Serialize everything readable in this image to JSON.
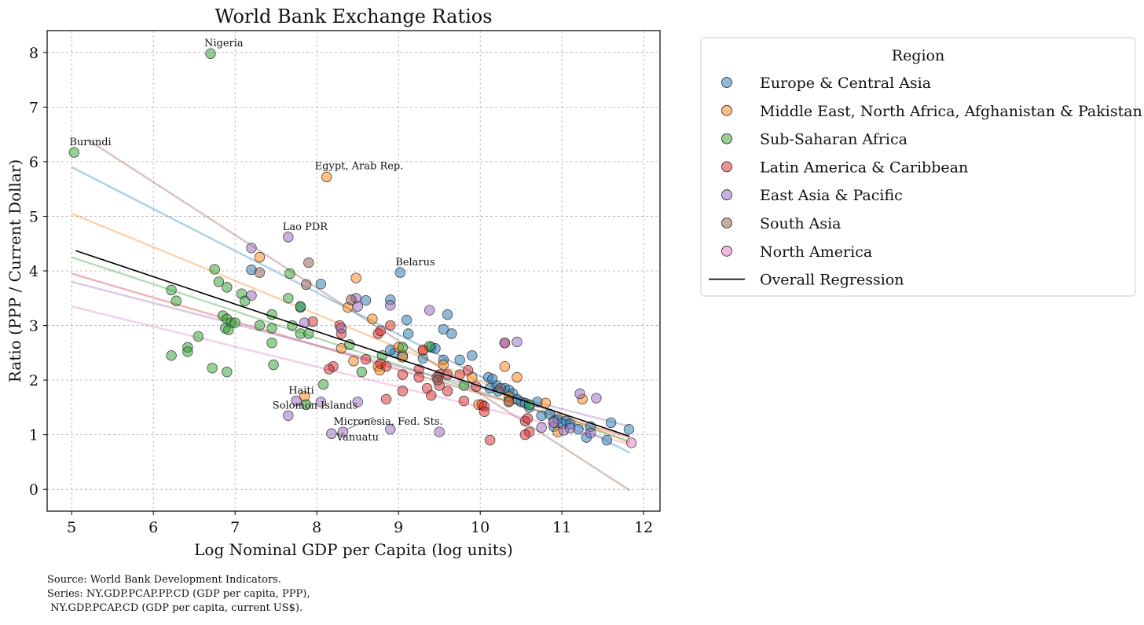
{
  "chart_data": {
    "type": "scatter",
    "title": "World Bank Exchange Ratios",
    "xlabel": "Log Nominal GDP per Capita (log units)",
    "ylabel": "Ratio (PPP / Current Dollar)",
    "xlim": [
      4.7,
      12.2
    ],
    "ylim": [
      -0.4,
      8.4
    ],
    "xticks": [
      5,
      6,
      7,
      8,
      9,
      10,
      11,
      12
    ],
    "yticks": [
      0,
      1,
      2,
      3,
      4,
      5,
      6,
      7,
      8
    ],
    "grid": true,
    "legend": {
      "title": "Region",
      "placement": "outside-right",
      "overall_label": "Overall Regression"
    },
    "series": [
      {
        "name": "Europe & Central Asia",
        "color": "#1f77b4",
        "regression": [
          [
            5.0,
            5.9
          ],
          [
            11.83,
            0.67
          ]
        ],
        "points": [
          [
            9.02,
            3.97
          ],
          [
            8.05,
            3.76
          ],
          [
            8.6,
            3.46
          ],
          [
            8.9,
            3.47
          ],
          [
            9.1,
            3.1
          ],
          [
            9.6,
            3.2
          ],
          [
            9.55,
            2.93
          ],
          [
            9.65,
            2.85
          ],
          [
            9.12,
            2.85
          ],
          [
            8.95,
            2.5
          ],
          [
            9.05,
            2.45
          ],
          [
            8.9,
            2.55
          ],
          [
            9.4,
            2.6
          ],
          [
            9.45,
            2.58
          ],
          [
            9.3,
            2.4
          ],
          [
            9.55,
            2.37
          ],
          [
            9.75,
            2.37
          ],
          [
            9.9,
            2.45
          ],
          [
            7.2,
            4.02
          ],
          [
            7.8,
            3.33
          ],
          [
            10.1,
            2.05
          ],
          [
            10.15,
            2.02
          ],
          [
            10.2,
            1.9
          ],
          [
            10.3,
            1.85
          ],
          [
            10.35,
            1.82
          ],
          [
            10.4,
            1.75
          ],
          [
            10.45,
            1.65
          ],
          [
            10.5,
            1.6
          ],
          [
            10.55,
            1.58
          ],
          [
            10.6,
            1.5
          ],
          [
            10.7,
            1.6
          ],
          [
            10.75,
            1.35
          ],
          [
            10.85,
            1.38
          ],
          [
            10.9,
            1.25
          ],
          [
            10.95,
            1.28
          ],
          [
            11.0,
            1.2
          ],
          [
            10.9,
            1.15
          ],
          [
            11.05,
            1.25
          ],
          [
            11.1,
            1.2
          ],
          [
            11.2,
            1.1
          ],
          [
            11.35,
            1.15
          ],
          [
            11.3,
            0.95
          ],
          [
            11.55,
            0.9
          ],
          [
            11.6,
            1.22
          ],
          [
            11.82,
            1.1
          ],
          [
            10.12,
            1.85
          ],
          [
            10.22,
            1.8
          ]
        ]
      },
      {
        "name": "Middle East, North Africa, Afghanistan & Pakistan",
        "color": "#ff7f0e",
        "regression": [
          [
            5.0,
            5.05
          ],
          [
            11.83,
            0.85
          ]
        ],
        "points": [
          [
            8.12,
            5.72
          ],
          [
            7.3,
            4.25
          ],
          [
            8.48,
            3.87
          ],
          [
            8.38,
            3.33
          ],
          [
            8.68,
            3.12
          ],
          [
            8.3,
            2.58
          ],
          [
            8.45,
            2.35
          ],
          [
            8.75,
            2.25
          ],
          [
            9.0,
            2.6
          ],
          [
            9.3,
            2.55
          ],
          [
            9.05,
            2.42
          ],
          [
            9.55,
            2.28
          ],
          [
            9.9,
            2.05
          ],
          [
            10.3,
            2.25
          ],
          [
            10.45,
            2.05
          ],
          [
            10.35,
            1.7
          ],
          [
            10.8,
            1.58
          ],
          [
            11.25,
            1.65
          ],
          [
            10.95,
            1.05
          ],
          [
            8.77,
            2.18
          ],
          [
            9.98,
            1.55
          ],
          [
            7.85,
            1.7
          ],
          [
            10.35,
            1.62
          ]
        ]
      },
      {
        "name": "Sub-Saharan Africa",
        "color": "#2ca02c",
        "regression": [
          [
            5.0,
            4.25
          ],
          [
            11.83,
            0.88
          ]
        ],
        "points": [
          [
            6.7,
            7.98
          ],
          [
            5.03,
            6.17
          ],
          [
            6.75,
            4.03
          ],
          [
            6.8,
            3.8
          ],
          [
            6.9,
            3.7
          ],
          [
            6.22,
            3.65
          ],
          [
            6.28,
            3.45
          ],
          [
            7.08,
            3.58
          ],
          [
            7.12,
            3.45
          ],
          [
            7.65,
            3.5
          ],
          [
            7.67,
            3.95
          ],
          [
            6.85,
            3.18
          ],
          [
            6.9,
            3.12
          ],
          [
            6.95,
            3.05
          ],
          [
            6.88,
            2.95
          ],
          [
            6.92,
            2.92
          ],
          [
            7.0,
            3.05
          ],
          [
            7.3,
            3.0
          ],
          [
            7.45,
            3.2
          ],
          [
            7.45,
            2.95
          ],
          [
            7.7,
            3.0
          ],
          [
            7.8,
            2.85
          ],
          [
            7.9,
            2.85
          ],
          [
            7.45,
            2.68
          ],
          [
            6.55,
            2.8
          ],
          [
            6.42,
            2.6
          ],
          [
            6.42,
            2.52
          ],
          [
            6.22,
            2.45
          ],
          [
            6.72,
            2.22
          ],
          [
            6.9,
            2.15
          ],
          [
            7.47,
            2.28
          ],
          [
            8.08,
            1.92
          ],
          [
            8.55,
            2.15
          ],
          [
            8.4,
            2.65
          ],
          [
            8.8,
            2.45
          ],
          [
            9.05,
            2.6
          ],
          [
            9.38,
            2.62
          ],
          [
            9.8,
            1.9
          ],
          [
            10.6,
            1.55
          ],
          [
            7.87,
            1.55
          ],
          [
            7.8,
            3.35
          ]
        ]
      },
      {
        "name": "Latin America & Caribbean",
        "color": "#d62728",
        "regression": [
          [
            5.0,
            3.95
          ],
          [
            11.83,
            0.95
          ]
        ],
        "points": [
          [
            7.95,
            3.07
          ],
          [
            8.3,
            2.85
          ],
          [
            8.28,
            3.0
          ],
          [
            8.9,
            3.0
          ],
          [
            8.75,
            2.85
          ],
          [
            8.78,
            2.9
          ],
          [
            8.2,
            2.25
          ],
          [
            8.15,
            2.2
          ],
          [
            8.6,
            2.38
          ],
          [
            8.78,
            2.3
          ],
          [
            8.85,
            2.25
          ],
          [
            9.05,
            2.1
          ],
          [
            9.25,
            2.2
          ],
          [
            9.25,
            2.05
          ],
          [
            9.5,
            2.1
          ],
          [
            9.6,
            2.1
          ],
          [
            9.35,
            1.85
          ],
          [
            9.5,
            1.9
          ],
          [
            9.6,
            1.8
          ],
          [
            9.4,
            1.72
          ],
          [
            9.05,
            1.8
          ],
          [
            8.85,
            1.65
          ],
          [
            9.8,
            1.62
          ],
          [
            10.02,
            1.55
          ],
          [
            10.05,
            1.52
          ],
          [
            10.05,
            1.42
          ],
          [
            10.3,
            2.68
          ],
          [
            10.55,
            1.25
          ],
          [
            10.58,
            1.3
          ],
          [
            10.6,
            1.05
          ],
          [
            10.55,
            1.0
          ],
          [
            10.12,
            0.9
          ],
          [
            9.85,
            2.18
          ],
          [
            9.75,
            2.1
          ],
          [
            9.95,
            1.88
          ],
          [
            9.3,
            2.55
          ]
        ]
      },
      {
        "name": "East Asia & Pacific",
        "color": "#9467bd",
        "regression": [
          [
            5.0,
            3.8
          ],
          [
            11.83,
            1.15
          ]
        ],
        "points": [
          [
            7.65,
            4.62
          ],
          [
            7.2,
            4.42
          ],
          [
            7.2,
            3.55
          ],
          [
            8.48,
            3.5
          ],
          [
            8.5,
            3.35
          ],
          [
            8.9,
            3.37
          ],
          [
            9.38,
            3.28
          ],
          [
            7.85,
            3.05
          ],
          [
            8.3,
            2.95
          ],
          [
            8.5,
            1.6
          ],
          [
            7.75,
            1.62
          ],
          [
            7.65,
            1.35
          ],
          [
            8.05,
            1.6
          ],
          [
            8.18,
            1.02
          ],
          [
            8.32,
            1.05
          ],
          [
            8.9,
            1.1
          ],
          [
            9.5,
            1.05
          ],
          [
            10.45,
            2.7
          ],
          [
            10.3,
            2.68
          ],
          [
            10.75,
            1.13
          ],
          [
            11.02,
            1.08
          ],
          [
            11.1,
            1.12
          ],
          [
            11.22,
            1.75
          ],
          [
            11.42,
            1.67
          ],
          [
            11.35,
            1.03
          ]
        ]
      },
      {
        "name": "South Asia",
        "color": "#8c564b",
        "regression": [
          [
            5.2,
            6.4
          ],
          [
            11.83,
            -0.02
          ]
        ],
        "points": [
          [
            7.9,
            4.15
          ],
          [
            7.3,
            3.97
          ],
          [
            7.87,
            3.75
          ],
          [
            8.42,
            3.47
          ],
          [
            9.47,
            2.05
          ],
          [
            9.48,
            2.0
          ],
          [
            10.35,
            1.6
          ],
          [
            10.25,
            1.85
          ]
        ]
      },
      {
        "name": "North America",
        "color": "#e377c2",
        "regression": [
          [
            5.0,
            3.35
          ],
          [
            11.83,
            0.83
          ]
        ],
        "points": [
          [
            11.85,
            0.85
          ],
          [
            10.9,
            1.22
          ]
        ]
      }
    ],
    "overall_regression": [
      [
        5.05,
        4.37
      ],
      [
        11.83,
        0.97
      ]
    ],
    "annotations": [
      {
        "text": "Nigeria",
        "x": 6.7,
        "y": 7.98
      },
      {
        "text": "Burundi",
        "x": 5.03,
        "y": 6.17
      },
      {
        "text": "Egypt, Arab Rep.",
        "x": 8.12,
        "y": 5.72
      },
      {
        "text": "Lao PDR",
        "x": 7.65,
        "y": 4.62
      },
      {
        "text": "Belarus",
        "x": 9.02,
        "y": 3.97
      },
      {
        "text": "Haiti",
        "x": 7.75,
        "y": 1.62
      },
      {
        "text": "Solomon Islands",
        "x": 7.65,
        "y": 1.35
      },
      {
        "text": "Micronesia, Fed. Sts.",
        "x": 8.32,
        "y": 1.05
      },
      {
        "text": "Vanuatu",
        "x": 8.18,
        "y": 1.02
      }
    ]
  },
  "source_note": [
    "Source: World Bank Development Indicators.",
    "Series: NY.GDP.PCAP.PP.CD (GDP per capita, PPP),",
    " NY.GDP.PCAP.CD (GDP per capita, current US$)."
  ]
}
